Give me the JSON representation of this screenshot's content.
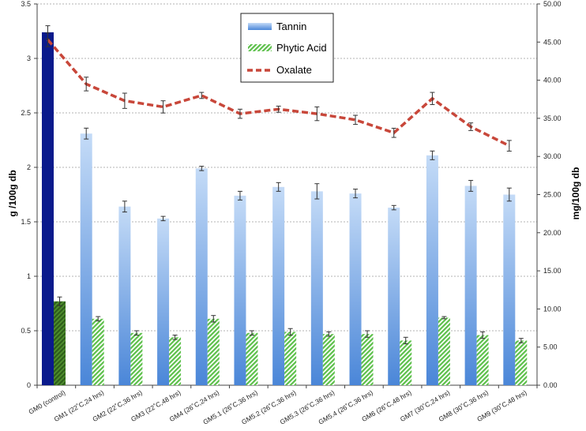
{
  "chart_data": {
    "type": "bar",
    "title": "",
    "categories": [
      "GM0 (control)",
      "GM1 (22˚C,24 hrs)",
      "GM2 (22˚C,36 hrs)",
      "GM3 (22˚C,48 hrs)",
      "GM4 (26˚C,24 hrs)",
      "GM5.1 (26˚C,36 hrs)",
      "GM5.2 (26˚C,36 hrs)",
      "GM5.3 (26˚C,36 hrs)",
      "GM5.4 (26˚C,36 hrs)",
      "GM6 (26˚C,48 hrs)",
      "GM7 (30˚C,24 hrs)",
      "GM8 (30˚C,36 hrs)",
      "GM9 (30˚C,48 hrs)"
    ],
    "series": [
      {
        "name": "Tannin",
        "type": "bar",
        "axis": "left",
        "values": [
          3.24,
          2.31,
          1.64,
          1.53,
          1.99,
          1.74,
          1.82,
          1.78,
          1.76,
          1.63,
          2.11,
          1.83,
          1.75
        ],
        "errors": [
          0.06,
          0.05,
          0.05,
          0.02,
          0.02,
          0.04,
          0.04,
          0.07,
          0.04,
          0.02,
          0.04,
          0.05,
          0.06
        ]
      },
      {
        "name": "Phytic Acid",
        "type": "bar",
        "axis": "left",
        "values": [
          0.77,
          0.61,
          0.48,
          0.44,
          0.61,
          0.48,
          0.49,
          0.47,
          0.47,
          0.41,
          0.62,
          0.46,
          0.41
        ],
        "errors": [
          0.04,
          0.02,
          0.02,
          0.02,
          0.03,
          0.02,
          0.03,
          0.02,
          0.03,
          0.03,
          0.01,
          0.03,
          0.02
        ]
      },
      {
        "name": "Oxalate",
        "type": "line",
        "axis": "right",
        "values": [
          45.3,
          39.5,
          37.3,
          36.5,
          38.0,
          35.6,
          36.2,
          35.6,
          34.8,
          33.1,
          37.6,
          33.9,
          31.4
        ],
        "errors": [
          0.9,
          0.9,
          1.0,
          0.8,
          0.4,
          0.6,
          0.4,
          0.9,
          0.6,
          0.6,
          0.8,
          0.5,
          0.7
        ]
      }
    ],
    "ylabel": "g /100g db",
    "y2label": "mg/100g db",
    "ylim": [
      0,
      3.5
    ],
    "y2lim": [
      0,
      50
    ],
    "yticks": [
      "0",
      "0.5",
      "1",
      "1.5",
      "2",
      "2.5",
      "3",
      "3.5"
    ],
    "y2ticks": [
      "0.00",
      "5.00",
      "10.00",
      "15.00",
      "20.00",
      "25.00",
      "30.00",
      "35.00",
      "40.00",
      "45.00",
      "50.00"
    ],
    "legend_position": "top-center",
    "grid": "horizontal-dashed",
    "colors": {
      "tannin_light": "#c4dbf7",
      "tannin_dark": "#4a86d8",
      "control_bar": "#0a1a8c",
      "phytic": "#5cc04a",
      "phytic_control": "#3f7a23",
      "oxalate": "#c8473a"
    }
  }
}
